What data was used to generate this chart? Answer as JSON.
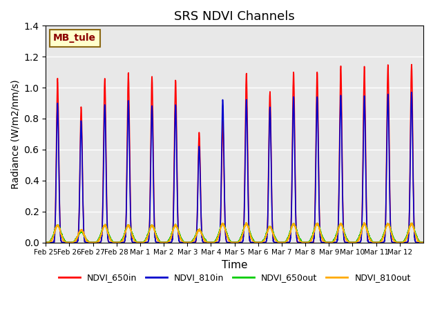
{
  "title": "SRS NDVI Channels",
  "xlabel": "Time",
  "ylabel": "Radiance (W/m2/nm/s)",
  "ylim": [
    0,
    1.4
  ],
  "annotation": "MB_tule",
  "bg_color": "#e8e8e8",
  "grid_color": "white",
  "lines": {
    "NDVI_650in": {
      "color": "#ff0000",
      "lw": 1.2
    },
    "NDVI_810in": {
      "color": "#0000cc",
      "lw": 1.2
    },
    "NDVI_650out": {
      "color": "#00cc00",
      "lw": 1.2
    },
    "NDVI_810out": {
      "color": "#ffaa00",
      "lw": 1.2
    }
  },
  "xtick_labels": [
    "Feb 25",
    "Feb 26",
    "Feb 27",
    "Feb 28",
    "Mar 1",
    "Mar 2",
    "Mar 3",
    "Mar 4",
    "Mar 5",
    "Mar 6",
    "Mar 7",
    "Mar 8",
    "Mar 9",
    "Mar 10",
    "Mar 11",
    "Mar 12"
  ],
  "peak_heights_650in": [
    1.05,
    0.87,
    1.06,
    1.09,
    1.07,
    1.05,
    0.71,
    0.78,
    1.09,
    0.97,
    1.1,
    1.1,
    1.14,
    1.13,
    1.14,
    1.15
  ],
  "peak_heights_810in": [
    0.89,
    0.78,
    0.89,
    0.91,
    0.88,
    0.89,
    0.62,
    0.92,
    0.92,
    0.87,
    0.94,
    0.94,
    0.95,
    0.94,
    0.95,
    0.97
  ],
  "peak_heights_650out": [
    0.11,
    0.07,
    0.11,
    0.11,
    0.11,
    0.11,
    0.08,
    0.12,
    0.12,
    0.1,
    0.12,
    0.12,
    0.12,
    0.12,
    0.12,
    0.12
  ],
  "peak_heights_810out": [
    0.11,
    0.08,
    0.11,
    0.11,
    0.11,
    0.11,
    0.08,
    0.12,
    0.12,
    0.1,
    0.12,
    0.12,
    0.12,
    0.12,
    0.12,
    0.12
  ]
}
